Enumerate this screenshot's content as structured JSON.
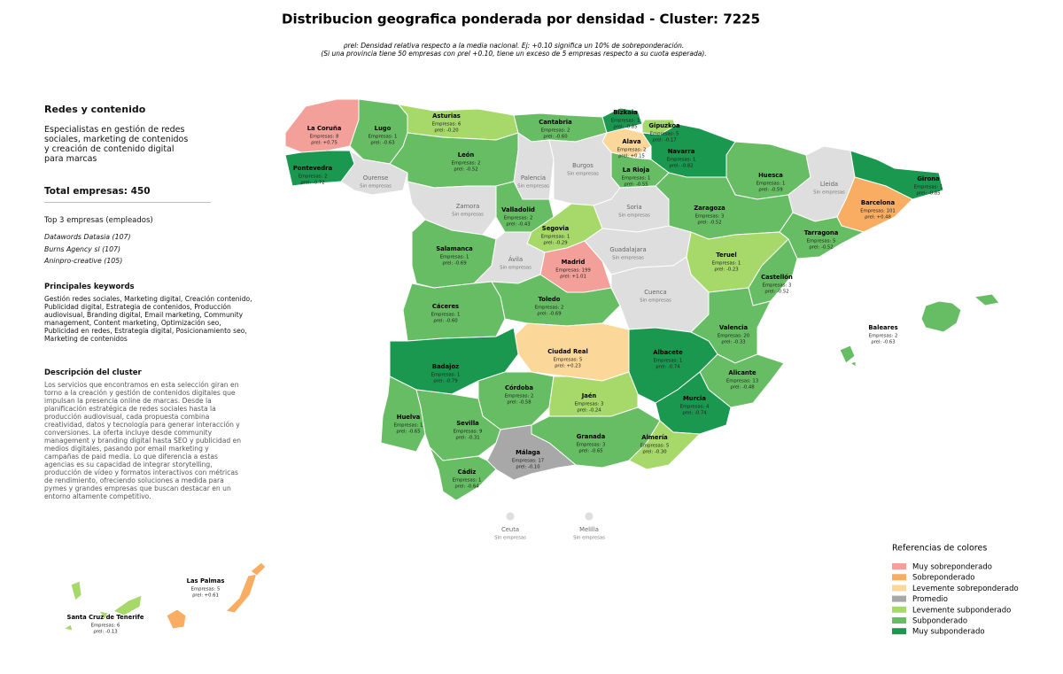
{
  "header": {
    "title": "Distribucion geografica ponderada por densidad - Cluster: 7225",
    "note_lines": [
      "ρrel: Densidad relativa respecto a la media nacional. Ej: +0.10 significa un 10% de sobreponderación.",
      "(Si una provincia tiene 50 empresas con ρrel +0.10, tiene un exceso de 5 empresas respecto a su cuota esperada)."
    ]
  },
  "panel": {
    "name": "Redes y contenido",
    "summary": "Especialistas en gestión de redes sociales, marketing de contenidos y creación de contenido digital para marcas",
    "total": "Total empresas: 450",
    "top_title": "Top 3 empresas (empleados)",
    "top": [
      "Datawords Datasia (107)",
      "Burns Agency sl (107)",
      "Aninpro-creative (105)"
    ],
    "keywords_title": "Principales keywords",
    "keywords": "Gestión redes sociales, Marketing digital, Creación contenido, Publicidad digital, Estrategia de contenidos, Producción audiovisual, Branding digital, Email marketing, Community management, Content marketing, Optimización seo, Publicidad en redes, Estrategia digital, Posicionamiento seo, Marketing de contenidos",
    "description_title": "Descripción del cluster",
    "description": "Los servicios que encontramos en esta selección giran en torno a la creación y gestión de contenidos digitales que impulsan la presencia online de marcas. Desde la planificación estratégica de redes sociales hasta la producción audiovisual, cada propuesta combina creatividad, datos y tecnología para generar interacción y conversiones. La oferta incluye desde community management y branding digital hasta SEO y publicidad en medios digitales, pasando por email marketing y campañas de paid media. Lo que diferencia a estas agencias es su capacidad de integrar storytelling, producción de vídeo y formatos interactivos con métricas de rendimiento, ofreciendo soluciones a medida para pymes y grandes empresas que buscan destacar en un entorno altamente competitivo."
  },
  "legend": {
    "title": "Referencias de colores",
    "items": [
      {
        "label": "Muy sobreponderado",
        "color": "#f4a09a"
      },
      {
        "label": "Sobreponderado",
        "color": "#f9ad62"
      },
      {
        "label": "Levemente sobreponderado",
        "color": "#fcd79a"
      },
      {
        "label": "Promedio",
        "color": "#a8a8a8"
      },
      {
        "label": "Levemente subponderado",
        "color": "#a6d96a"
      },
      {
        "label": "Subponderado",
        "color": "#66bd63"
      },
      {
        "label": "Muy subponderado",
        "color": "#1a9850"
      }
    ]
  },
  "provinces": [
    {
      "name": "La Coruña",
      "lines": [
        "Empresas: 8",
        "ρrel: +0.75"
      ],
      "color": "#f4a09a"
    },
    {
      "name": "Lugo",
      "lines": [
        "Empresas: 1",
        "ρrel: -0.63"
      ],
      "color": "#66bd63"
    },
    {
      "name": "Asturias",
      "lines": [
        "Empresas: 6",
        "ρrel: -0.20"
      ],
      "color": "#a6d96a"
    },
    {
      "name": "Cantabria",
      "lines": [
        "Empresas: 2",
        "ρrel: -0.60"
      ],
      "color": "#66bd63"
    },
    {
      "name": "Bizkaia",
      "lines": [
        "Empresas: 1",
        "ρrel: -0.85"
      ],
      "color": "#1a9850"
    },
    {
      "name": "Gipuzkoa",
      "lines": [
        "Empresas: 5",
        "ρrel: -0.17"
      ],
      "color": "#a6d96a"
    },
    {
      "name": "Alava",
      "lines": [
        "Empresas: 2",
        "ρrel: +0.15"
      ],
      "color": "#fcd79a"
    },
    {
      "name": "Navarra",
      "lines": [
        "Empresas: 1",
        "ρrel: -0.82"
      ],
      "color": "#1a9850"
    },
    {
      "name": "La Rioja",
      "lines": [
        "Empresas: 1",
        "ρrel: -0.55"
      ],
      "color": "#66bd63"
    },
    {
      "name": "Pontevedra",
      "lines": [
        "Empresas: 2",
        "ρrel: -0.72"
      ],
      "color": "#1a9850"
    },
    {
      "name": "Ourense",
      "lines": [
        "Sin empresas"
      ],
      "color": "#dedede"
    },
    {
      "name": "León",
      "lines": [
        "Empresas: 2",
        "ρrel: -0.52"
      ],
      "color": "#66bd63"
    },
    {
      "name": "Palencia",
      "lines": [
        "Sin empresas"
      ],
      "color": "#dedede"
    },
    {
      "name": "Burgos",
      "lines": [
        "Sin empresas"
      ],
      "color": "#dedede"
    },
    {
      "name": "Huesca",
      "lines": [
        "Empresas: 1",
        "ρrel: -0.59"
      ],
      "color": "#66bd63"
    },
    {
      "name": "Lleida",
      "lines": [
        "Sin empresas"
      ],
      "color": "#dedede"
    },
    {
      "name": "Girona",
      "lines": [
        "Empresas: 1",
        "ρrel: -0.85"
      ],
      "color": "#1a9850"
    },
    {
      "name": "Barcelona",
      "lines": [
        "Empresas: 101",
        "ρrel: +0.48"
      ],
      "color": "#f9ad62"
    },
    {
      "name": "Zamora",
      "lines": [
        "Sin empresas"
      ],
      "color": "#dedede"
    },
    {
      "name": "Valladolid",
      "lines": [
        "Empresas: 2",
        "ρrel: -0.43"
      ],
      "color": "#66bd63"
    },
    {
      "name": "Soria",
      "lines": [
        "Sin empresas"
      ],
      "color": "#dedede"
    },
    {
      "name": "Zaragoza",
      "lines": [
        "Empresas: 3",
        "ρrel: -0.52"
      ],
      "color": "#66bd63"
    },
    {
      "name": "Tarragona",
      "lines": [
        "Empresas: 5",
        "ρrel: -0.52"
      ],
      "color": "#66bd63"
    },
    {
      "name": "Segovia",
      "lines": [
        "Empresas: 1",
        "ρrel: -0.29"
      ],
      "color": "#a6d96a"
    },
    {
      "name": "Salamanca",
      "lines": [
        "Empresas: 1",
        "ρrel: -0.69"
      ],
      "color": "#66bd63"
    },
    {
      "name": "Ávila",
      "lines": [
        "Sin empresas"
      ],
      "color": "#dedede"
    },
    {
      "name": "Madrid",
      "lines": [
        "Empresas: 199",
        "ρrel: +1.01"
      ],
      "color": "#f4a09a"
    },
    {
      "name": "Guadalajara",
      "lines": [
        "Sin empresas"
      ],
      "color": "#dedede"
    },
    {
      "name": "Teruel",
      "lines": [
        "Empresas: 1",
        "ρrel: -0.23"
      ],
      "color": "#a6d96a"
    },
    {
      "name": "Castellón",
      "lines": [
        "Empresas: 3",
        "ρrel: -0.52"
      ],
      "color": "#66bd63"
    },
    {
      "name": "Cáceres",
      "lines": [
        "Empresas: 1",
        "ρrel: -0.60"
      ],
      "color": "#66bd63"
    },
    {
      "name": "Toledo",
      "lines": [
        "Empresas: 2",
        "ρrel: -0.69"
      ],
      "color": "#66bd63"
    },
    {
      "name": "Cuenca",
      "lines": [
        "Sin empresas"
      ],
      "color": "#dedede"
    },
    {
      "name": "Valencia",
      "lines": [
        "Empresas: 20",
        "ρrel: -0.33"
      ],
      "color": "#66bd63"
    },
    {
      "name": "Baleares",
      "lines": [
        "Empresas: 2",
        "ρrel: -0.63"
      ],
      "color": "#66bd63"
    },
    {
      "name": "Ciudad Real",
      "lines": [
        "Empresas: 5",
        "ρrel: +0.23"
      ],
      "color": "#fcd79a"
    },
    {
      "name": "Badajoz",
      "lines": [
        "Empresas: 1",
        "ρrel: -0.79"
      ],
      "color": "#1a9850"
    },
    {
      "name": "Albacete",
      "lines": [
        "Empresas: 1",
        "ρrel: -0.74"
      ],
      "color": "#1a9850"
    },
    {
      "name": "Alicante",
      "lines": [
        "Empresas: 13",
        "ρrel: -0.48"
      ],
      "color": "#66bd63"
    },
    {
      "name": "Córdoba",
      "lines": [
        "Empresas: 2",
        "ρrel: -0.58"
      ],
      "color": "#66bd63"
    },
    {
      "name": "Jaén",
      "lines": [
        "Empresas: 3",
        "ρrel: -0.24"
      ],
      "color": "#a6d96a"
    },
    {
      "name": "Murcia",
      "lines": [
        "Empresas: 4",
        "ρrel: -0.74"
      ],
      "color": "#1a9850"
    },
    {
      "name": "Huelva",
      "lines": [
        "Empresas: 1",
        "ρrel: -0.65"
      ],
      "color": "#66bd63"
    },
    {
      "name": "Sevilla",
      "lines": [
        "Empresas: 9",
        "ρrel: -0.31"
      ],
      "color": "#66bd63"
    },
    {
      "name": "Granada",
      "lines": [
        "Empresas: 3",
        "ρrel: -0.65"
      ],
      "color": "#66bd63"
    },
    {
      "name": "Almería",
      "lines": [
        "Empresas: 5",
        "ρrel: -0.30"
      ],
      "color": "#a6d96a"
    },
    {
      "name": "Málaga",
      "lines": [
        "Empresas: 17",
        "ρrel: -0.10"
      ],
      "color": "#a8a8a8"
    },
    {
      "name": "Cádiz",
      "lines": [
        "Empresas: 1",
        "ρrel: -0.64"
      ],
      "color": "#66bd63"
    },
    {
      "name": "Ceuta",
      "lines": [
        "Sin empresas"
      ],
      "color": "#dedede"
    },
    {
      "name": "Melilla",
      "lines": [
        "Sin empresas"
      ],
      "color": "#dedede"
    },
    {
      "name": "Las Palmas",
      "lines": [
        "Empresas: 5",
        "ρrel: +0.61"
      ],
      "color": "#f9ad62"
    },
    {
      "name": "Santa Cruz de Tenerife",
      "lines": [
        "Empresas: 6",
        "ρrel: -0.13"
      ],
      "color": "#a6d96a"
    }
  ]
}
